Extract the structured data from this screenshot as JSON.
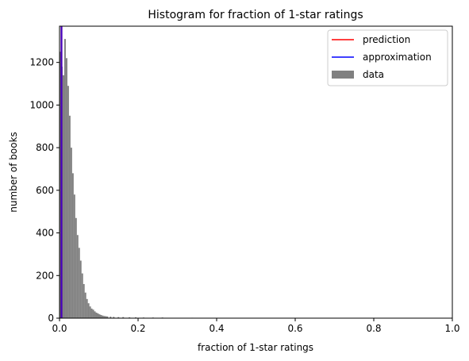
{
  "chart_data": {
    "type": "histogram",
    "title": "Histogram for fraction of 1-star ratings",
    "xlabel": "fraction of 1-star ratings",
    "ylabel": "number of books",
    "xlim": [
      0,
      1
    ],
    "ylim": [
      0,
      1370
    ],
    "xticks": [
      0.0,
      0.2,
      0.4,
      0.6,
      0.8,
      1.0
    ],
    "xtick_labels": [
      "0.0",
      "0.2",
      "0.4",
      "0.6",
      "0.8",
      "1.0"
    ],
    "yticks": [
      0,
      200,
      400,
      600,
      800,
      1000,
      1200
    ],
    "ytick_labels": [
      "0",
      "200",
      "400",
      "600",
      "800",
      "1000",
      "1200"
    ],
    "grid": false,
    "legend_position": "top-right",
    "bin_width": 0.004,
    "bins_start": [
      0.0,
      0.004,
      0.008,
      0.012,
      0.016,
      0.02,
      0.024,
      0.028,
      0.032,
      0.036,
      0.04,
      0.044,
      0.048,
      0.052,
      0.056,
      0.06,
      0.064,
      0.068,
      0.072,
      0.076,
      0.08,
      0.084,
      0.088,
      0.092,
      0.096,
      0.1,
      0.104,
      0.108,
      0.112,
      0.116,
      0.12,
      0.128,
      0.136,
      0.148,
      0.16,
      0.176,
      0.192,
      0.212,
      0.236,
      0.26,
      0.336
    ],
    "counts": [
      1250,
      1180,
      1140,
      1310,
      1220,
      1090,
      950,
      800,
      680,
      580,
      470,
      390,
      330,
      270,
      210,
      160,
      120,
      90,
      70,
      55,
      45,
      40,
      32,
      26,
      22,
      18,
      15,
      12,
      10,
      9,
      8,
      7,
      6,
      5,
      5,
      4,
      4,
      3,
      3,
      3,
      2
    ],
    "series": [
      {
        "name": "prediction",
        "kind": "vline",
        "x": 0.005,
        "color": "#ff0000"
      },
      {
        "name": "approximation",
        "kind": "vline",
        "x": 0.005,
        "color": "#0000ff"
      },
      {
        "name": "data",
        "kind": "histogram",
        "color": "#808080"
      }
    ]
  }
}
